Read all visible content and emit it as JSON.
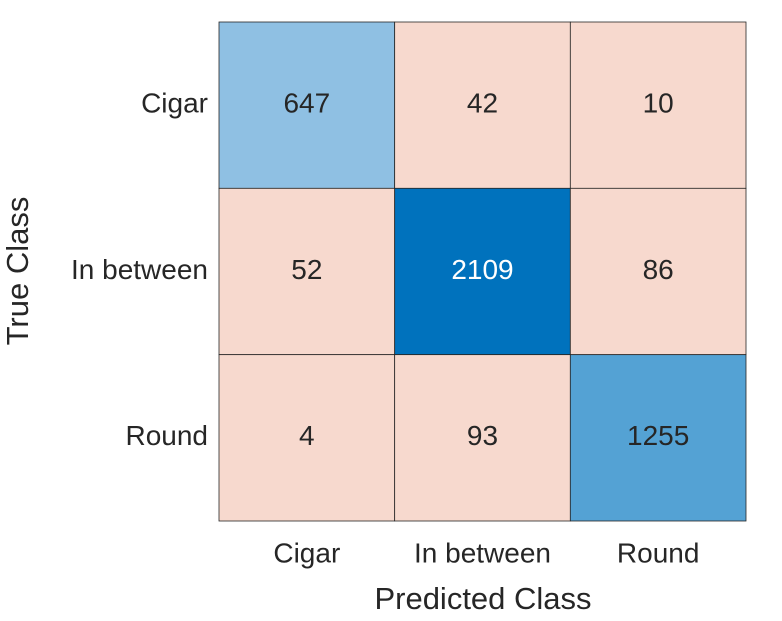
{
  "chart_data": {
    "type": "confusion",
    "x_label": "Predicted Class",
    "y_label": "True Class",
    "x_categories": [
      "Cigar",
      "In between",
      "Round"
    ],
    "y_categories": [
      "Cigar",
      "In between",
      "Round"
    ],
    "values": [
      [
        647,
        42,
        10
      ],
      [
        52,
        2109,
        86
      ],
      [
        4,
        93,
        1255
      ]
    ],
    "cell_colors": [
      [
        "#8fc0e3",
        "#f7d9ce",
        "#f7d9ce"
      ],
      [
        "#f7d9ce",
        "#0072bd",
        "#f7d9ce"
      ],
      [
        "#f7d9ce",
        "#f7d9ce",
        "#54a2d4"
      ]
    ]
  }
}
